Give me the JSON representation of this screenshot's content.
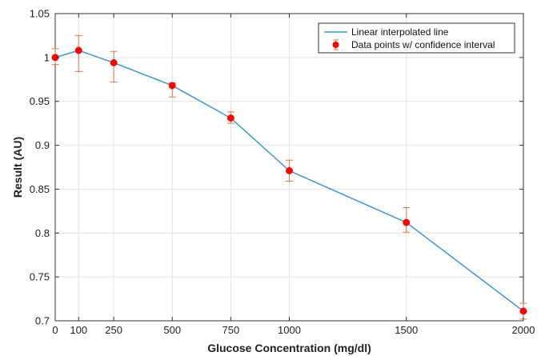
{
  "chart_data": {
    "type": "line",
    "title": "",
    "xlabel": "Glucose Concentration (mg/dl)",
    "ylabel": "Result (AU)",
    "xlim": [
      0,
      2000
    ],
    "ylim": [
      0.7,
      1.05
    ],
    "x_ticks": [
      0,
      100,
      250,
      500,
      750,
      1000,
      1500,
      2000
    ],
    "x_tick_labels": [
      "0",
      "100",
      "250",
      "500",
      "750",
      "1000",
      "1500",
      "2000"
    ],
    "y_ticks": [
      0.7,
      0.75,
      0.8,
      0.85,
      0.9,
      0.95,
      1.0,
      1.05
    ],
    "y_tick_labels": [
      "0.7",
      "0.75",
      "0.8",
      "0.85",
      "0.9",
      "0.95",
      "1",
      "1.05"
    ],
    "grid": true,
    "legend_position": "top-right",
    "series": [
      {
        "name": "Linear interpolated line",
        "kind": "line",
        "color": "#3a96d6",
        "x": [
          0,
          100,
          250,
          500,
          750,
          1000,
          1500,
          2000
        ],
        "y": [
          1.0,
          1.008,
          0.994,
          0.968,
          0.931,
          0.871,
          0.812,
          0.711
        ]
      },
      {
        "name": "Data points w/ confidence interval",
        "kind": "errorbar",
        "color": "#ff0000",
        "errorbar_color": "#e8733c",
        "x": [
          0,
          100,
          250,
          500,
          750,
          1000,
          1500,
          2000
        ],
        "y": [
          1.0,
          1.008,
          0.994,
          0.968,
          0.931,
          0.871,
          0.812,
          0.711
        ],
        "lower": [
          0.992,
          0.984,
          0.972,
          0.955,
          0.925,
          0.859,
          0.801,
          0.702
        ],
        "upper": [
          1.01,
          1.025,
          1.007,
          0.971,
          0.938,
          0.883,
          0.829,
          0.72
        ]
      }
    ]
  }
}
